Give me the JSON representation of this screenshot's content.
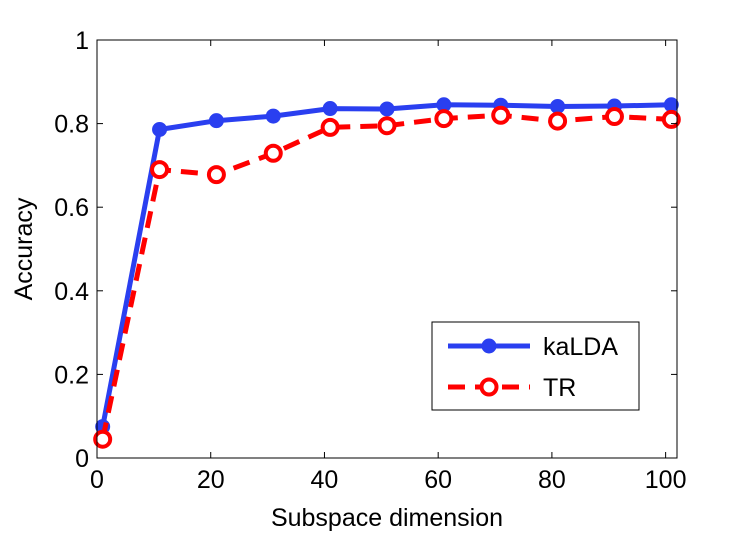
{
  "chart_data": {
    "type": "line",
    "title": "",
    "xlabel": "Subspace dimension",
    "ylabel": "Accuracy",
    "xlim": [
      0,
      102
    ],
    "ylim": [
      0,
      1
    ],
    "xticks": [
      0,
      20,
      40,
      60,
      80,
      100
    ],
    "xtick_labels": [
      "0",
      "20",
      "40",
      "60",
      "80",
      "100"
    ],
    "yticks": [
      0,
      0.2,
      0.4,
      0.6,
      0.8,
      1
    ],
    "ytick_labels": [
      "0",
      "0.2",
      "0.4",
      "0.6",
      "0.8",
      "1"
    ],
    "grid": false,
    "legend_position": "bottom-right",
    "x": [
      1,
      11,
      21,
      31,
      41,
      51,
      61,
      71,
      81,
      91,
      101
    ],
    "series": [
      {
        "name": "kaLDA",
        "color": "#2a3ff0",
        "style": "solid",
        "marker": "filled-circle",
        "values": [
          0.075,
          0.786,
          0.807,
          0.818,
          0.836,
          0.835,
          0.845,
          0.844,
          0.841,
          0.842,
          0.845
        ]
      },
      {
        "name": "TR",
        "color": "#ff0000",
        "style": "dashed",
        "marker": "open-circle",
        "values": [
          0.045,
          0.69,
          0.678,
          0.729,
          0.791,
          0.795,
          0.812,
          0.82,
          0.806,
          0.817,
          0.81
        ]
      }
    ]
  }
}
